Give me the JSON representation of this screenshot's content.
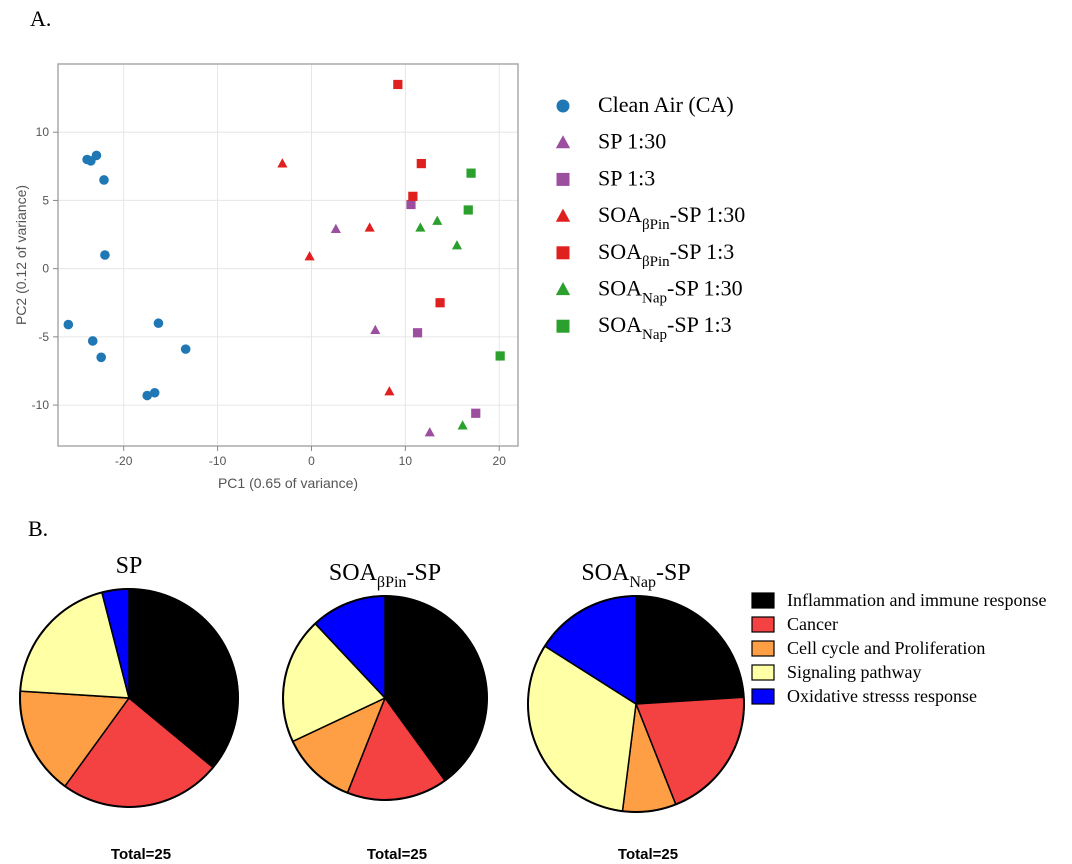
{
  "panel_a_label": "A.",
  "panel_b_label": "B.",
  "chart_data": [
    {
      "type": "scatter",
      "xlabel": "PC1 (0.65 of variance)",
      "ylabel": "PC2 (0.12 of variance)",
      "xlim": [
        -27,
        22
      ],
      "ylim": [
        -13,
        15
      ],
      "xticks": [
        -20,
        -10,
        0,
        10,
        20
      ],
      "yticks": [
        -10,
        -5,
        0,
        5,
        10
      ],
      "grid": true,
      "legend_position": "right",
      "series": [
        {
          "name": "Clean Air (CA)",
          "name_main": "Clean Air (CA)",
          "name_sub": "",
          "name_tail": "",
          "marker": "circle",
          "color": "#1f77b4",
          "points": [
            [
              -23.5,
              7.9
            ],
            [
              -23.9,
              8.0
            ],
            [
              -22.9,
              8.3
            ],
            [
              -22.1,
              6.5
            ],
            [
              -22.0,
              1.0
            ],
            [
              -25.9,
              -4.1
            ],
            [
              -16.3,
              -4.0
            ],
            [
              -23.3,
              -5.3
            ],
            [
              -22.4,
              -6.5
            ],
            [
              -13.4,
              -5.9
            ],
            [
              -17.5,
              -9.3
            ],
            [
              -16.7,
              -9.1
            ]
          ]
        },
        {
          "name": "SP 1:30",
          "name_main": "SP 1:30",
          "name_sub": "",
          "name_tail": "",
          "marker": "triangle",
          "color": "#9b4f9e",
          "points": [
            [
              2.6,
              2.9
            ],
            [
              6.8,
              -4.5
            ],
            [
              12.6,
              -12.0
            ]
          ]
        },
        {
          "name": "SP 1:3",
          "name_main": "SP 1:3",
          "name_sub": "",
          "name_tail": "",
          "marker": "square",
          "color": "#9b4f9e",
          "points": [
            [
              10.6,
              4.7
            ],
            [
              11.3,
              -4.7
            ],
            [
              17.5,
              -10.6
            ]
          ]
        },
        {
          "name": "SOAβPin-SP 1:30",
          "name_main": "SOA",
          "name_sub": "βPin",
          "name_tail": "-SP 1:30",
          "marker": "triangle",
          "color": "#e0201f",
          "points": [
            [
              -3.1,
              7.7
            ],
            [
              -0.2,
              0.9
            ],
            [
              6.2,
              3.0
            ],
            [
              8.3,
              -9.0
            ]
          ]
        },
        {
          "name": "SOAβPin-SP 1:3",
          "name_main": "SOA",
          "name_sub": "βPin",
          "name_tail": "-SP 1:3",
          "marker": "square",
          "color": "#e0201f",
          "points": [
            [
              9.2,
              13.5
            ],
            [
              11.7,
              7.7
            ],
            [
              10.8,
              5.3
            ],
            [
              13.7,
              -2.5
            ]
          ]
        },
        {
          "name": "SOANap-SP 1:30",
          "name_main": "SOA",
          "name_sub": "Nap",
          "name_tail": "-SP 1:30",
          "marker": "triangle",
          "color": "#2ca02c",
          "points": [
            [
              11.6,
              3.0
            ],
            [
              13.4,
              3.5
            ],
            [
              15.5,
              1.7
            ],
            [
              16.1,
              -11.5
            ]
          ]
        },
        {
          "name": "SOANap-SP 1:3",
          "name_main": "SOA",
          "name_sub": "Nap",
          "name_tail": "-SP 1:3",
          "marker": "square",
          "color": "#2ca02c",
          "points": [
            [
              17.0,
              7.0
            ],
            [
              16.7,
              4.3
            ],
            [
              20.1,
              -6.4
            ]
          ]
        }
      ]
    },
    {
      "type": "pie",
      "title_main": "SP",
      "title_sub": "",
      "title_tail": "",
      "total_label": "Total=25",
      "slices": [
        {
          "category": "Inflammation and immune response",
          "fraction": 0.36
        },
        {
          "category": "Cancer",
          "fraction": 0.24
        },
        {
          "category": "Cell cycle and Proliferation",
          "fraction": 0.16
        },
        {
          "category": "Signaling pathway",
          "fraction": 0.2
        },
        {
          "category": "Oxidative stresss response",
          "fraction": 0.04
        }
      ]
    },
    {
      "type": "pie",
      "title_main": "SOA",
      "title_sub": "βPin",
      "title_tail": "-SP",
      "total_label": "Total=25",
      "slices": [
        {
          "category": "Inflammation and immune response",
          "fraction": 0.4
        },
        {
          "category": "Cancer",
          "fraction": 0.16
        },
        {
          "category": "Cell cycle and Proliferation",
          "fraction": 0.12
        },
        {
          "category": "Signaling pathway",
          "fraction": 0.2
        },
        {
          "category": "Oxidative stresss response",
          "fraction": 0.12
        }
      ]
    },
    {
      "type": "pie",
      "title_main": "SOA",
      "title_sub": "Nap",
      "title_tail": "-SP",
      "total_label": "Total=25",
      "slices": [
        {
          "category": "Inflammation and immune response",
          "fraction": 0.24
        },
        {
          "category": "Cancer",
          "fraction": 0.2
        },
        {
          "category": "Cell cycle and Proliferation",
          "fraction": 0.08
        },
        {
          "category": "Signaling pathway",
          "fraction": 0.32
        },
        {
          "category": "Oxidative stresss response",
          "fraction": 0.16
        }
      ]
    }
  ],
  "pie_legend": [
    {
      "label": "Inflammation and immune response",
      "color": "#000000"
    },
    {
      "label": "Cancer",
      "color": "#f44242"
    },
    {
      "label": "Cell cycle and Proliferation",
      "color": "#ff9f45"
    },
    {
      "label": "Signaling pathway",
      "color": "#ffffa6"
    },
    {
      "label": "Oxidative stresss response",
      "color": "#0000ff"
    }
  ]
}
